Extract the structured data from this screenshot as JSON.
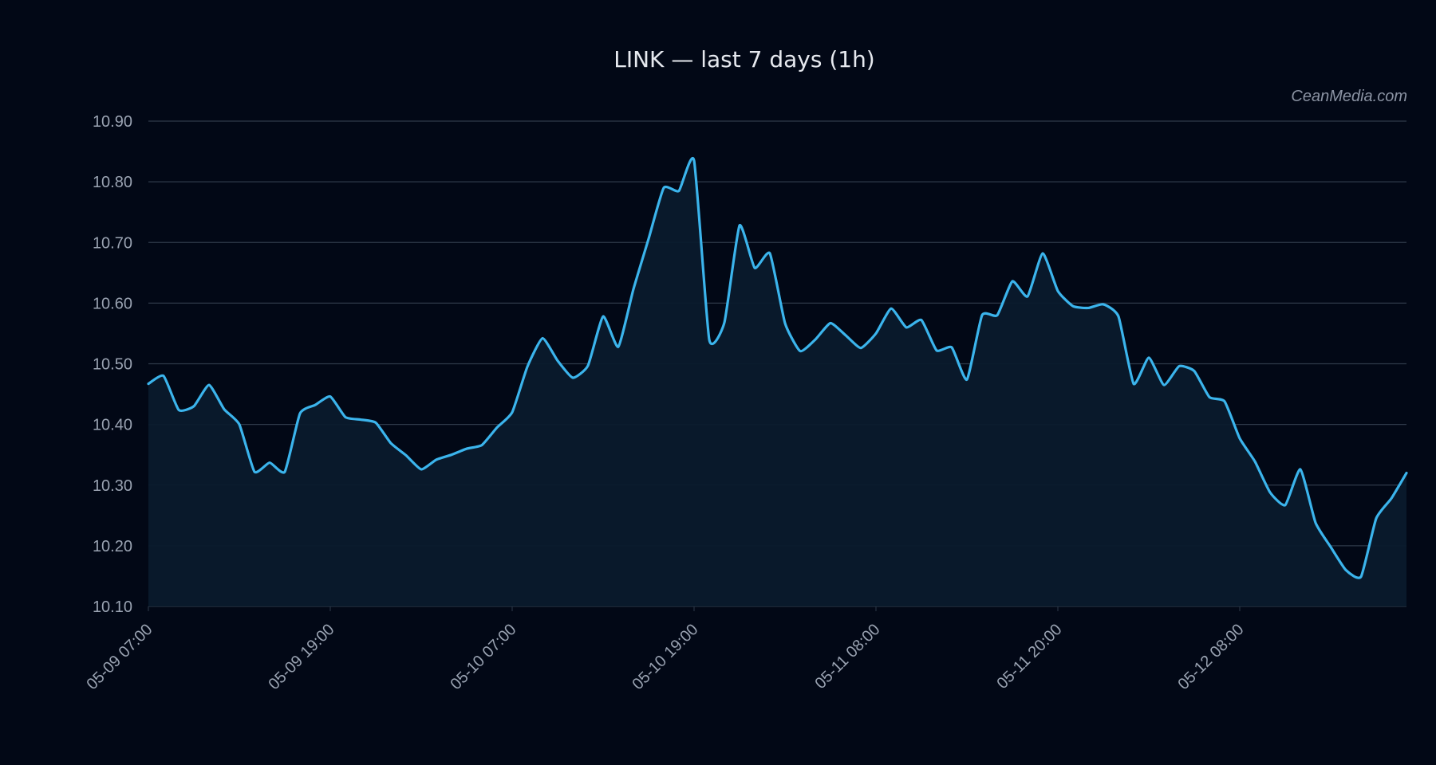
{
  "chart_data": {
    "type": "area",
    "title": "LINK — last 7 days (1h)",
    "watermark": "CeanMedia.com",
    "xlabel": "",
    "ylabel": "",
    "ylim": [
      10.1,
      10.9
    ],
    "y_ticks": [
      "10.10",
      "10.20",
      "10.30",
      "10.40",
      "10.50",
      "10.60",
      "10.70",
      "10.80",
      "10.90"
    ],
    "x_tick_labels": [
      "05-09 07:00",
      "05-09 19:00",
      "05-10 07:00",
      "05-10 19:00",
      "05-11 08:00",
      "05-11 20:00",
      "05-12 08:00"
    ],
    "x_tick_index": [
      0,
      12,
      24,
      36,
      48,
      60,
      72
    ],
    "grid": true,
    "colors": {
      "background": "#020816",
      "line": "#3bb4ec",
      "fill": "#0a1a2c",
      "grid": "#2f3a4a"
    },
    "series": [
      {
        "values": [
          10.467,
          10.48,
          10.424,
          10.43,
          10.465,
          10.425,
          10.4,
          10.322,
          10.337,
          10.322,
          10.418,
          10.432,
          10.446,
          10.412,
          10.408,
          10.403,
          10.369,
          10.349,
          10.326,
          10.342,
          10.35,
          10.36,
          10.366,
          10.395,
          10.42,
          10.495,
          10.542,
          10.505,
          10.477,
          10.497,
          10.578,
          10.528,
          10.623,
          10.706,
          10.79,
          10.785,
          10.835,
          10.54,
          10.568,
          10.728,
          10.658,
          10.682,
          10.567,
          10.521,
          10.54,
          10.567,
          10.547,
          10.526,
          10.55,
          10.591,
          10.56,
          10.572,
          10.522,
          10.527,
          10.474,
          10.58,
          10.58,
          10.636,
          10.611,
          10.682,
          10.62,
          10.595,
          10.592,
          10.598,
          10.578,
          10.467,
          10.51,
          10.465,
          10.496,
          10.488,
          10.445,
          10.438,
          10.377,
          10.339,
          10.288,
          10.267,
          10.326,
          10.238,
          10.198,
          10.16,
          10.149,
          10.245,
          10.278,
          10.32
        ]
      }
    ]
  }
}
